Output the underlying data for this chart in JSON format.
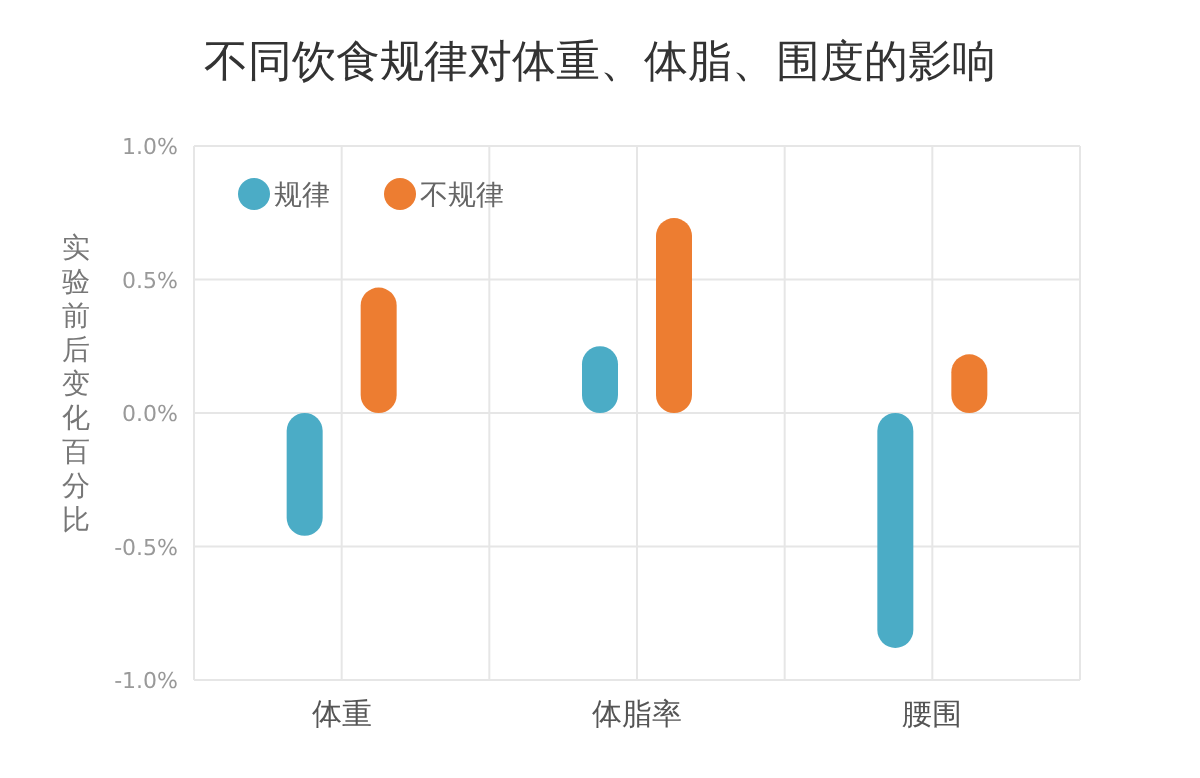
{
  "chart_data": {
    "type": "bar",
    "title": "不同饮食规律对体重、体脂、围度的影响",
    "ylabel": "实验前后变化百分比",
    "categories": [
      "体重",
      "体脂率",
      "腰围"
    ],
    "series": [
      {
        "name": "规律",
        "color": "#4bacc6",
        "values": [
          -0.46,
          0.25,
          -0.88
        ]
      },
      {
        "name": "不规律",
        "color": "#ed7d31",
        "values": [
          0.47,
          0.73,
          0.22
        ]
      }
    ],
    "ylim": [
      -1,
      1
    ],
    "yticks": [
      {
        "value": -1,
        "label": "-1.0%"
      },
      {
        "value": -0.5,
        "label": "-0.5%"
      },
      {
        "value": 0,
        "label": "0.0%"
      },
      {
        "value": 0.5,
        "label": "0.5%"
      },
      {
        "value": 1,
        "label": "1.0%"
      }
    ],
    "grid": true,
    "legend": "top left"
  }
}
